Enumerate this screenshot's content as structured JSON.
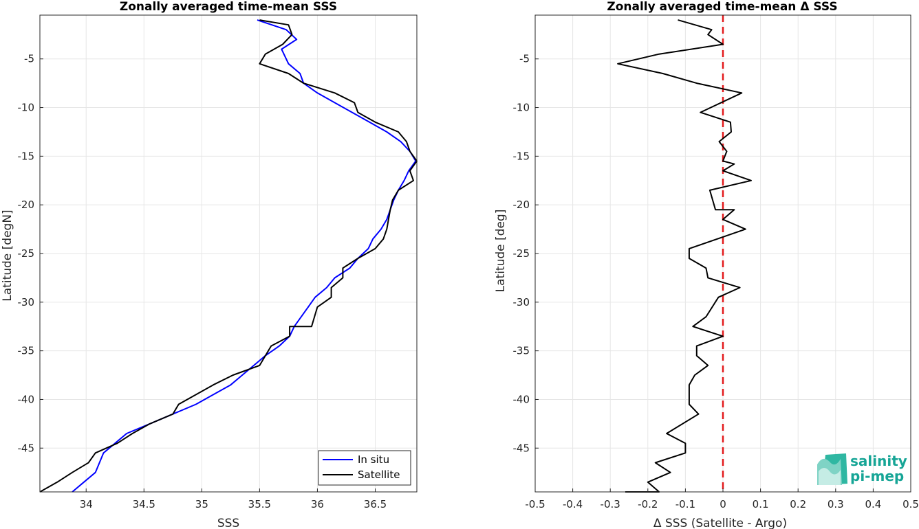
{
  "chart_data": [
    {
      "type": "line",
      "title": "Zonally averaged time-mean SSS",
      "xlabel": "SSS",
      "ylabel": "Latitude [degN]",
      "xlim": [
        33.6,
        36.86
      ],
      "ylim": [
        -49.5,
        -0.5
      ],
      "xticks": [
        34,
        34.5,
        35,
        35.5,
        36,
        36.5
      ],
      "xtick_labels": [
        "34",
        "34.5",
        "35",
        "35.5",
        "36",
        "36.5"
      ],
      "yticks": [
        -5,
        -10,
        -15,
        -20,
        -25,
        -30,
        -35,
        -40,
        -45
      ],
      "ytick_labels": [
        "-5",
        "-10",
        "-15",
        "-20",
        "-25",
        "-30",
        "-35",
        "-40",
        "-45"
      ],
      "grid": true,
      "legend_position": "bottom-right",
      "series": [
        {
          "name": "In situ",
          "color": "#0000ff",
          "x": [
            35.48,
            35.73,
            35.82,
            35.69,
            35.71,
            35.75,
            35.85,
            35.88,
            36.0,
            36.15,
            36.3,
            36.45,
            36.6,
            36.72,
            36.8,
            36.85,
            36.79,
            36.75,
            36.7,
            36.66,
            36.63,
            36.6,
            36.55,
            36.48,
            36.44,
            36.35,
            36.28,
            36.15,
            36.08,
            35.98,
            35.92,
            35.86,
            35.8,
            35.76,
            35.67,
            35.55,
            35.45,
            35.35,
            35.25,
            35.1,
            34.95,
            34.75,
            34.55,
            34.35,
            34.25,
            34.15,
            34.08,
            33.98,
            33.88
          ],
          "y": [
            -1,
            -2,
            -3,
            -4,
            -4.5,
            -5.5,
            -6.5,
            -7.5,
            -8.5,
            -9.5,
            -10.5,
            -11.5,
            -12.5,
            -13.5,
            -14.5,
            -15.5,
            -16.5,
            -17.5,
            -18.5,
            -19.5,
            -20.5,
            -21.5,
            -22.5,
            -23.5,
            -24.5,
            -25.5,
            -26.5,
            -27.5,
            -28.5,
            -29.5,
            -30.5,
            -31.5,
            -32.5,
            -33.5,
            -34.5,
            -35.5,
            -36.5,
            -37.5,
            -38.5,
            -39.5,
            -40.5,
            -41.5,
            -42.5,
            -43.5,
            -44.5,
            -45.5,
            -47.5,
            -48.5,
            -49.5
          ]
        },
        {
          "name": "Satellite",
          "color": "#000000",
          "x": [
            35.5,
            35.75,
            35.78,
            35.7,
            35.55,
            35.5,
            35.75,
            35.88,
            36.15,
            36.32,
            36.35,
            36.5,
            36.7,
            36.77,
            36.8,
            36.86,
            36.8,
            36.83,
            36.7,
            36.65,
            36.63,
            36.6,
            36.57,
            36.5,
            36.35,
            36.22,
            36.22,
            36.12,
            36.12,
            36.0,
            35.95,
            35.76,
            35.76,
            35.6,
            35.5,
            35.27,
            35.1,
            34.8,
            34.75,
            34.55,
            34.4,
            34.27,
            34.08,
            34.02,
            33.88,
            33.75,
            33.6
          ],
          "y": [
            -1,
            -1.5,
            -2.5,
            -3.5,
            -4.5,
            -5.5,
            -6.5,
            -7.5,
            -8.5,
            -9.5,
            -10.5,
            -11.5,
            -12.5,
            -13.5,
            -14.5,
            -15.5,
            -16.5,
            -17.5,
            -18.5,
            -19.5,
            -20.5,
            -22.5,
            -23.5,
            -24.5,
            -25.5,
            -26.5,
            -27.5,
            -28.5,
            -29.5,
            -30.5,
            -32.5,
            -32.5,
            -33.5,
            -34.5,
            -36.5,
            -37.5,
            -38.5,
            -40.5,
            -41.5,
            -42.5,
            -43.5,
            -44.5,
            -45.5,
            -46.5,
            -47.5,
            -48.5,
            -49.5
          ]
        }
      ]
    },
    {
      "type": "line",
      "title": "Zonally averaged time-mean Δ SSS",
      "xlabel": "Δ SSS (Satellite - Argo)",
      "ylabel": "Latitude [deg]",
      "xlim": [
        -0.5,
        0.5
      ],
      "ylim": [
        -49.5,
        -0.5
      ],
      "xticks": [
        -0.5,
        -0.4,
        -0.3,
        -0.2,
        -0.1,
        0,
        0.1,
        0.2,
        0.3,
        0.4,
        0.5
      ],
      "xtick_labels": [
        "-0.5",
        "-0.4",
        "-0.3",
        "-0.2",
        "-0.1",
        "0",
        "0.1",
        "0.2",
        "0.3",
        "0.4",
        "0.5"
      ],
      "yticks": [
        -5,
        -10,
        -15,
        -20,
        -25,
        -30,
        -35,
        -40,
        -45
      ],
      "ytick_labels": [
        "-5",
        "-10",
        "-15",
        "-20",
        "-25",
        "-30",
        "-35",
        "-40",
        "-45"
      ],
      "grid": true,
      "reference_line": {
        "x": 0,
        "color": "#e31a1c",
        "style": "dashed"
      },
      "series": [
        {
          "color": "#000000",
          "x": [
            -0.12,
            -0.03,
            -0.04,
            0.0,
            -0.17,
            -0.28,
            -0.16,
            -0.07,
            0.05,
            -0.06,
            0.02,
            0.022,
            -0.01,
            0.01,
            0.0,
            0.03,
            0.0,
            0.075,
            -0.035,
            -0.02,
            0.03,
            0.0,
            0.06,
            -0.09,
            -0.09,
            -0.045,
            -0.04,
            0.045,
            -0.012,
            -0.045,
            -0.08,
            0.0,
            -0.07,
            -0.07,
            -0.04,
            -0.075,
            -0.09,
            -0.09,
            -0.065,
            -0.15,
            -0.1,
            -0.1,
            -0.18,
            -0.14,
            -0.2,
            -0.17,
            -0.26
          ],
          "y": [
            -1,
            -2,
            -2.5,
            -3.5,
            -4.5,
            -5.5,
            -6.5,
            -7.5,
            -8.5,
            -10.5,
            -11.5,
            -12.5,
            -13.5,
            -14.5,
            -15.5,
            -15.8,
            -16.5,
            -17.5,
            -18.5,
            -20.5,
            -20.5,
            -21.5,
            -22.5,
            -24.5,
            -25.5,
            -26.5,
            -27.5,
            -28.5,
            -29.5,
            -31.5,
            -32.5,
            -33.5,
            -34.5,
            -35.5,
            -36.5,
            -37.5,
            -38.5,
            -40.5,
            -41.5,
            -43.5,
            -44.5,
            -45.5,
            -46.5,
            -47.5,
            -48.5,
            -49.5,
            -49.5
          ]
        }
      ]
    }
  ],
  "logo": {
    "line1": "salinity",
    "line2": "pi-mep"
  },
  "colors": {
    "logo_teal": "#16a596",
    "reference_red": "#e31a1c"
  }
}
